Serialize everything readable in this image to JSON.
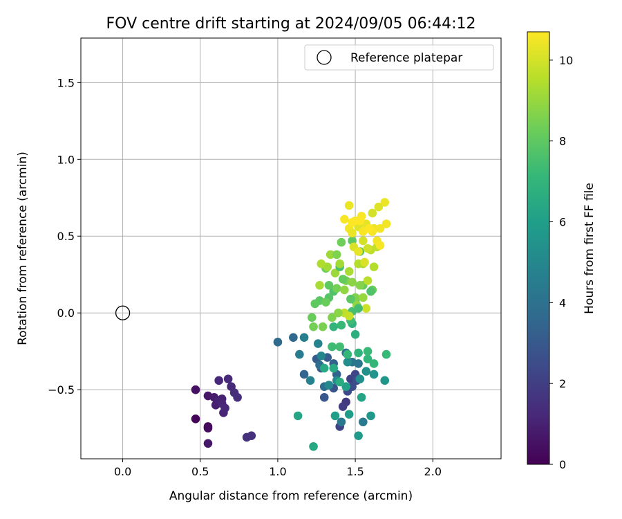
{
  "chart_data": {
    "type": "scatter",
    "title": "FOV centre drift starting at 2024/09/05 06:44:12",
    "xlabel": "Angular distance from reference (arcmin)",
    "ylabel": "Rotation from reference (arcmin)",
    "xlim": [
      -0.27,
      2.44
    ],
    "ylim": [
      -0.95,
      1.79
    ],
    "xticks": [
      0.0,
      0.5,
      1.0,
      1.5,
      2.0
    ],
    "xtick_labels": [
      "0.0",
      "0.5",
      "1.0",
      "1.5",
      "2.0"
    ],
    "yticks": [
      -0.5,
      0.0,
      0.5,
      1.0,
      1.5
    ],
    "ytick_labels": [
      "−0.5",
      "0.0",
      "0.5",
      "1.0",
      "1.5"
    ],
    "grid": true,
    "legend": {
      "placement": "upper right",
      "entries": [
        "Reference platepar"
      ]
    },
    "reference_point": {
      "x": 0.0,
      "y": 0.0,
      "marker": "open-circle"
    },
    "colorbar": {
      "label": "Hours from first FF file",
      "cmap": "viridis",
      "vmin": 0,
      "vmax": 10.7,
      "ticks": [
        0,
        2,
        4,
        6,
        8,
        10
      ],
      "tick_labels": [
        "0",
        "2",
        "4",
        "6",
        "8",
        "10"
      ]
    },
    "points": [
      [
        0.47,
        -0.69,
        0.1
      ],
      [
        0.55,
        -0.74,
        0.2
      ],
      [
        0.55,
        -0.75,
        0.3
      ],
      [
        0.47,
        -0.5,
        0.5
      ],
      [
        0.55,
        -0.54,
        0.6
      ],
      [
        0.55,
        -0.85,
        0.7
      ],
      [
        0.59,
        -0.55,
        0.8
      ],
      [
        0.6,
        -0.6,
        0.9
      ],
      [
        0.62,
        -0.57,
        1.0
      ],
      [
        0.64,
        -0.56,
        1.0
      ],
      [
        0.64,
        -0.59,
        1.1
      ],
      [
        0.65,
        -0.65,
        1.1
      ],
      [
        0.66,
        -0.62,
        1.2
      ],
      [
        0.62,
        -0.44,
        1.2
      ],
      [
        0.68,
        -0.43,
        1.3
      ],
      [
        0.7,
        -0.48,
        1.3
      ],
      [
        0.72,
        -0.52,
        1.4
      ],
      [
        0.74,
        -0.55,
        1.4
      ],
      [
        0.8,
        -0.81,
        1.5
      ],
      [
        0.83,
        -0.8,
        1.5
      ],
      [
        1.44,
        -0.58,
        1.8
      ],
      [
        1.42,
        -0.61,
        1.9
      ],
      [
        1.47,
        -0.43,
        2.1
      ],
      [
        1.4,
        -0.74,
        2.2
      ],
      [
        1.5,
        -0.4,
        2.3
      ],
      [
        1.45,
        -0.51,
        2.4
      ],
      [
        1.48,
        -0.48,
        2.5
      ],
      [
        1.51,
        -0.44,
        2.6
      ],
      [
        1.36,
        -0.49,
        2.8
      ],
      [
        1.3,
        -0.55,
        2.9
      ],
      [
        1.28,
        -0.36,
        3.0
      ],
      [
        1.25,
        -0.3,
        3.1
      ],
      [
        1.32,
        -0.29,
        3.2
      ],
      [
        1.36,
        -0.33,
        3.3
      ],
      [
        1.38,
        -0.4,
        3.4
      ],
      [
        1.17,
        -0.4,
        3.5
      ],
      [
        1.1,
        -0.16,
        3.6
      ],
      [
        1.0,
        -0.19,
        3.7
      ],
      [
        1.3,
        -0.48,
        3.8
      ],
      [
        1.27,
        -0.34,
        3.9
      ],
      [
        1.44,
        -0.26,
        4.0
      ],
      [
        1.48,
        -0.32,
        4.1
      ],
      [
        1.52,
        -0.33,
        4.2
      ],
      [
        1.41,
        -0.71,
        4.3
      ],
      [
        1.55,
        -0.71,
        4.4
      ],
      [
        1.14,
        -0.27,
        4.5
      ],
      [
        1.17,
        -0.16,
        4.6
      ],
      [
        1.21,
        -0.44,
        4.7
      ],
      [
        1.26,
        -0.2,
        4.8
      ],
      [
        1.28,
        -0.28,
        4.9
      ],
      [
        1.33,
        -0.47,
        5.0
      ],
      [
        1.38,
        -0.44,
        5.1
      ],
      [
        1.45,
        -0.32,
        5.2
      ],
      [
        1.53,
        -0.43,
        5.3
      ],
      [
        1.57,
        -0.38,
        5.4
      ],
      [
        1.62,
        -0.4,
        5.5
      ],
      [
        1.69,
        -0.44,
        5.6
      ],
      [
        1.6,
        -0.67,
        5.7
      ],
      [
        1.52,
        -0.8,
        5.8
      ],
      [
        1.46,
        -0.66,
        5.9
      ],
      [
        1.37,
        -0.67,
        6.0
      ],
      [
        1.44,
        -0.48,
        6.1
      ],
      [
        1.54,
        -0.55,
        6.2
      ],
      [
        1.13,
        -0.67,
        6.3
      ],
      [
        1.23,
        -0.87,
        6.4
      ],
      [
        1.3,
        -0.36,
        6.5
      ],
      [
        1.36,
        -0.36,
        6.5
      ],
      [
        1.4,
        -0.45,
        6.6
      ],
      [
        1.5,
        -0.14,
        6.7
      ],
      [
        1.48,
        -0.07,
        6.8
      ],
      [
        1.52,
        -0.26,
        6.9
      ],
      [
        1.58,
        -0.3,
        7.0
      ],
      [
        1.62,
        -0.33,
        7.1
      ],
      [
        1.7,
        -0.27,
        7.2
      ],
      [
        1.47,
        -0.05,
        7.3
      ],
      [
        1.4,
        -0.22,
        7.4
      ],
      [
        1.48,
        0.01,
        7.5
      ],
      [
        1.5,
        0.08,
        7.6
      ],
      [
        1.36,
        0.14,
        7.7
      ],
      [
        1.33,
        0.1,
        7.8
      ],
      [
        1.27,
        0.08,
        7.9
      ],
      [
        1.24,
        0.06,
        8.0
      ],
      [
        1.55,
        0.18,
        8.1
      ],
      [
        1.61,
        0.15,
        8.2
      ],
      [
        1.35,
        -0.22,
        7.3
      ],
      [
        1.45,
        -0.27,
        7.1
      ],
      [
        1.58,
        -0.25,
        7.2
      ],
      [
        1.31,
        0.29,
        8.3
      ],
      [
        1.38,
        0.16,
        8.4
      ],
      [
        1.44,
        0.21,
        8.5
      ],
      [
        1.5,
        0.1,
        8.6
      ],
      [
        1.53,
        0.18,
        8.7
      ],
      [
        1.48,
        0.2,
        8.8
      ],
      [
        1.43,
        0.15,
        8.9
      ],
      [
        1.55,
        0.1,
        9.0
      ],
      [
        1.37,
        0.26,
        9.1
      ],
      [
        1.32,
        0.3,
        9.2
      ],
      [
        1.27,
        0.18,
        9.3
      ],
      [
        1.28,
        0.32,
        9.4
      ],
      [
        1.52,
        0.32,
        9.5
      ],
      [
        1.58,
        0.21,
        9.6
      ],
      [
        1.43,
        0.0,
        9.7
      ],
      [
        1.46,
        -0.02,
        9.8
      ],
      [
        1.57,
        0.03,
        9.9
      ],
      [
        1.4,
        0.3,
        7.6
      ],
      [
        1.53,
        0.4,
        7.8
      ],
      [
        1.48,
        0.47,
        8.0
      ],
      [
        1.41,
        0.46,
        8.3
      ],
      [
        1.22,
        -0.03,
        8.2
      ],
      [
        1.23,
        -0.09,
        8.4
      ],
      [
        1.29,
        -0.09,
        8.5
      ],
      [
        1.35,
        -0.03,
        8.6
      ],
      [
        1.39,
        0.0,
        8.8
      ],
      [
        1.51,
        0.05,
        8.9
      ],
      [
        1.34,
        0.38,
        9.1
      ],
      [
        1.4,
        0.32,
        9.2
      ],
      [
        1.46,
        0.27,
        9.3
      ],
      [
        1.55,
        0.32,
        9.4
      ],
      [
        1.62,
        0.3,
        9.5
      ],
      [
        1.6,
        0.41,
        9.6
      ],
      [
        1.64,
        0.43,
        9.7
      ],
      [
        1.58,
        0.42,
        9.9
      ],
      [
        1.55,
        0.47,
        10.0
      ],
      [
        1.49,
        0.43,
        10.1
      ],
      [
        1.52,
        0.56,
        10.2
      ],
      [
        1.57,
        0.58,
        10.3
      ],
      [
        1.62,
        0.55,
        10.4
      ],
      [
        1.66,
        0.55,
        10.5
      ],
      [
        1.61,
        0.53,
        10.6
      ],
      [
        1.5,
        0.6,
        10.6
      ],
      [
        1.46,
        0.55,
        10.5
      ],
      [
        1.54,
        0.63,
        10.6
      ],
      [
        1.48,
        0.52,
        10.4
      ],
      [
        1.52,
        0.4,
        10.3
      ],
      [
        1.56,
        0.33,
        10.1
      ],
      [
        1.64,
        0.47,
        10.5
      ],
      [
        1.66,
        0.44,
        10.6
      ],
      [
        1.7,
        0.58,
        10.5
      ],
      [
        1.69,
        0.72,
        10.4
      ],
      [
        1.65,
        0.69,
        10.2
      ],
      [
        1.61,
        0.65,
        10.0
      ],
      [
        1.55,
        0.53,
        10.6
      ],
      [
        1.59,
        0.55,
        10.7
      ],
      [
        1.53,
        0.6,
        10.7
      ],
      [
        1.48,
        0.59,
        10.7
      ],
      [
        1.43,
        0.61,
        10.6
      ],
      [
        1.46,
        0.7,
        10.4
      ],
      [
        1.38,
        0.38,
        8.6
      ],
      [
        1.42,
        0.22,
        8.1
      ],
      [
        1.47,
        0.09,
        7.9
      ],
      [
        1.52,
        0.03,
        7.4
      ],
      [
        1.41,
        -0.08,
        7.2
      ],
      [
        1.6,
        0.14,
        7.7
      ],
      [
        1.36,
        -0.09,
        7.0
      ],
      [
        1.31,
        0.07,
        8.2
      ],
      [
        1.33,
        0.18,
        8.0
      ]
    ]
  }
}
